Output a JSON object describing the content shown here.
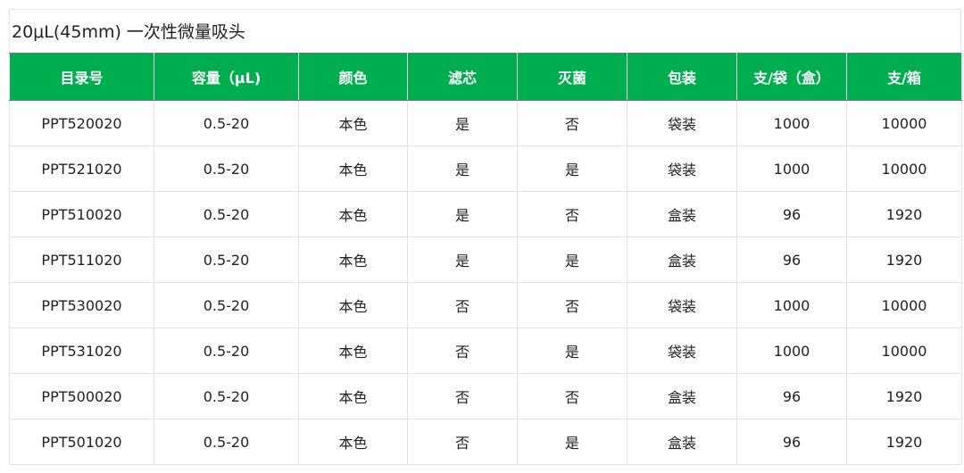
{
  "title": "20μL(45mm) 一次性微量吸头",
  "colors": {
    "header_bg": "#00ad4f",
    "header_text": "#ffffff"
  },
  "table": {
    "headers": [
      "目录号",
      "容量（μL)",
      "颜色",
      "滤芯",
      "灭菌",
      "包装",
      "支/袋（盒）",
      "支/箱"
    ],
    "rows": [
      [
        "PPT520020",
        "0.5-20",
        "本色",
        "是",
        "否",
        "袋装",
        "1000",
        "10000"
      ],
      [
        "PPT521020",
        "0.5-20",
        "本色",
        "是",
        "是",
        "袋装",
        "1000",
        "10000"
      ],
      [
        "PPT510020",
        "0.5-20",
        "本色",
        "是",
        "否",
        "盒装",
        "96",
        "1920"
      ],
      [
        "PPT511020",
        "0.5-20",
        "本色",
        "是",
        "是",
        "盒装",
        "96",
        "1920"
      ],
      [
        "PPT530020",
        "0.5-20",
        "本色",
        "否",
        "否",
        "袋装",
        "1000",
        "10000"
      ],
      [
        "PPT531020",
        "0.5-20",
        "本色",
        "否",
        "是",
        "袋装",
        "1000",
        "10000"
      ],
      [
        "PPT500020",
        "0.5-20",
        "本色",
        "否",
        "否",
        "盒装",
        "96",
        "1920"
      ],
      [
        "PPT501020",
        "0.5-20",
        "本色",
        "否",
        "是",
        "盒装",
        "96",
        "1920"
      ]
    ]
  }
}
